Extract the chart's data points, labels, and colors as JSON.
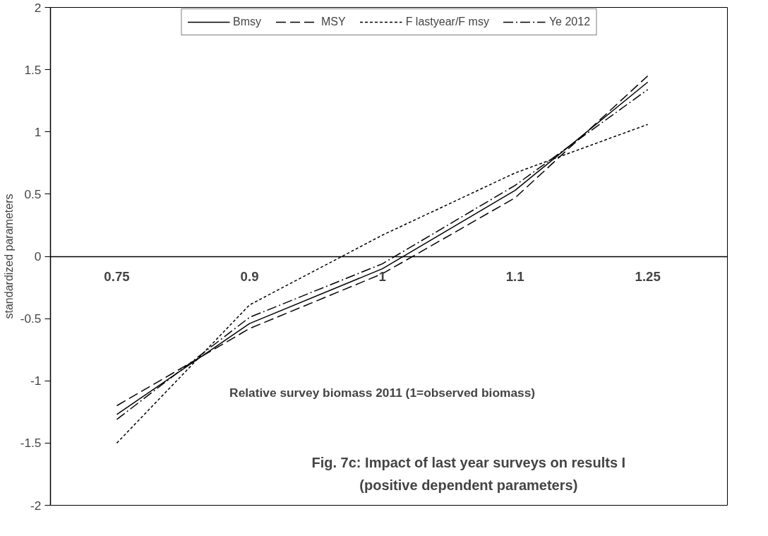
{
  "chart_data": {
    "type": "line",
    "title": "Fig. 7c: Impact of last year surveys on results I",
    "subtitle": "(positive dependent parameters)",
    "xlabel": "Relative survey biomass 2011 (1=observed biomass)",
    "ylabel": "standardized parameters",
    "categories": [
      "0.75",
      "0.9",
      "1",
      "1.1",
      "1.25"
    ],
    "series": [
      {
        "name": "Bmsy",
        "color": "#000000",
        "line_style": "solid",
        "values": [
          -1.27,
          -0.54,
          -0.1,
          0.53,
          1.4
        ]
      },
      {
        "name": "MSY",
        "color": "#000000",
        "line_style": "dashed",
        "values": [
          -1.2,
          -0.58,
          -0.14,
          0.47,
          1.45
        ]
      },
      {
        "name": "F lastyear/F msy",
        "color": "#000000",
        "line_style": "dotted",
        "values": [
          -1.5,
          -0.39,
          0.17,
          0.67,
          1.06
        ]
      },
      {
        "name": "Ye 2012",
        "color": "#000000",
        "line_style": "dashdot",
        "values": [
          -1.31,
          -0.49,
          -0.06,
          0.57,
          1.34
        ]
      }
    ],
    "ylim": [
      -2,
      2
    ],
    "yticks": [
      -2,
      -1.5,
      -1,
      -0.5,
      0,
      0.5,
      1,
      1.5,
      2
    ],
    "grid": false,
    "legend": "top",
    "marker": "none"
  }
}
